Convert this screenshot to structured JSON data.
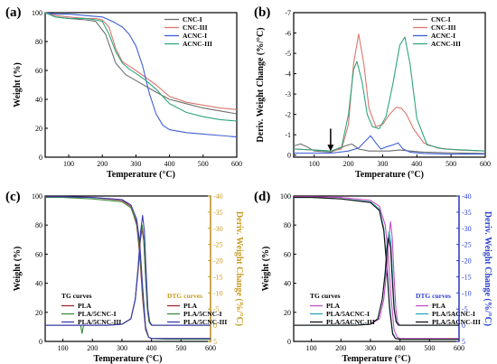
{
  "chart_data": [
    {
      "type": "line",
      "panel_label": "(a)",
      "xlabel": "Temperature (°C)",
      "ylabel": "Weight (%)",
      "xlim": [
        30,
        600
      ],
      "ylim": [
        0,
        100
      ],
      "xticks": [
        100,
        200,
        300,
        400,
        500,
        600
      ],
      "yticks": [
        0,
        20,
        40,
        60,
        80,
        100
      ],
      "legend_position": "top-right",
      "series": [
        {
          "name": "CNC-I",
          "color": "#6e6e6e",
          "x": [
            30,
            60,
            100,
            150,
            180,
            210,
            240,
            270,
            300,
            330,
            360,
            400,
            450,
            500,
            550,
            600
          ],
          "y": [
            100,
            97,
            96,
            95,
            94,
            85,
            65,
            57,
            53,
            49,
            45,
            40,
            37,
            34,
            32,
            30
          ]
        },
        {
          "name": "CNC-III",
          "color": "#d9776f",
          "x": [
            30,
            60,
            100,
            150,
            180,
            200,
            220,
            240,
            260,
            280,
            300,
            330,
            360,
            400,
            450,
            500,
            550,
            600
          ],
          "y": [
            100,
            98,
            97,
            96,
            96,
            95,
            90,
            75,
            66,
            63,
            60,
            55,
            50,
            42,
            38,
            36,
            34,
            33
          ]
        },
        {
          "name": "ACNC-I",
          "color": "#3f5fd6",
          "x": [
            30,
            60,
            100,
            150,
            200,
            230,
            260,
            280,
            300,
            320,
            340,
            360,
            380,
            400,
            450,
            500,
            550,
            600
          ],
          "y": [
            100,
            99,
            99,
            98,
            97,
            94,
            90,
            85,
            77,
            63,
            44,
            30,
            22,
            19,
            17,
            16,
            15,
            14
          ]
        },
        {
          "name": "ACNC-III",
          "color": "#2fa57e",
          "x": [
            30,
            60,
            100,
            150,
            180,
            200,
            220,
            240,
            260,
            280,
            300,
            330,
            360,
            400,
            450,
            500,
            550,
            600
          ],
          "y": [
            100,
            97,
            96,
            96,
            95,
            94,
            85,
            73,
            65,
            61,
            58,
            53,
            47,
            37,
            31,
            28,
            26,
            25
          ]
        }
      ]
    },
    {
      "type": "line",
      "panel_label": "(b)",
      "xlabel": "Temperature (°C)",
      "ylabel": "Deriv. Weight Change (%/°C)",
      "xlim": [
        40,
        600
      ],
      "ylim": [
        0.1,
        -7
      ],
      "xticks": [
        100,
        200,
        300,
        400,
        500,
        600
      ],
      "yticks": [
        0,
        -1,
        -2,
        -3,
        -4,
        -5,
        -6,
        -7
      ],
      "legend_position": "top-right",
      "annotation": "arrow",
      "series": [
        {
          "name": "CNC-I",
          "color": "#6e6e6e",
          "x": [
            40,
            60,
            80,
            100,
            150,
            190,
            210,
            230,
            260,
            290,
            320,
            350,
            380,
            420,
            480,
            540,
            600
          ],
          "y": [
            -0.45,
            -0.55,
            -0.4,
            -0.2,
            -0.15,
            -0.45,
            -0.55,
            -0.3,
            -0.2,
            -0.2,
            -0.2,
            -0.25,
            -0.2,
            -0.15,
            -0.12,
            -0.1,
            -0.08
          ]
        },
        {
          "name": "CNC-III",
          "color": "#d9776f",
          "x": [
            40,
            100,
            150,
            180,
            200,
            215,
            230,
            245,
            260,
            280,
            300,
            320,
            340,
            355,
            370,
            390,
            420,
            460,
            520,
            600
          ],
          "y": [
            -0.3,
            -0.25,
            -0.2,
            -0.3,
            -1.5,
            -4.5,
            -5.95,
            -4.5,
            -2.3,
            -1.4,
            -1.5,
            -2.0,
            -2.35,
            -2.3,
            -2.0,
            -1.3,
            -0.6,
            -0.35,
            -0.25,
            -0.2
          ]
        },
        {
          "name": "ACNC-I",
          "color": "#3f5fd6",
          "x": [
            40,
            100,
            150,
            200,
            230,
            250,
            265,
            280,
            295,
            310,
            330,
            345,
            360,
            380,
            420,
            500,
            600
          ],
          "y": [
            -0.1,
            -0.1,
            -0.1,
            -0.2,
            -0.35,
            -0.7,
            -0.95,
            -0.6,
            -0.3,
            -0.4,
            -0.5,
            -0.6,
            -0.3,
            -0.15,
            -0.08,
            -0.05,
            -0.05
          ]
        },
        {
          "name": "ACNC-III",
          "color": "#2fa57e",
          "x": [
            40,
            100,
            150,
            180,
            200,
            215,
            225,
            240,
            255,
            270,
            290,
            310,
            330,
            350,
            365,
            380,
            400,
            430,
            480,
            540,
            600
          ],
          "y": [
            -0.3,
            -0.25,
            -0.2,
            -0.4,
            -2.0,
            -4.2,
            -4.6,
            -3.6,
            -2.0,
            -1.4,
            -1.3,
            -1.9,
            -3.5,
            -5.4,
            -5.8,
            -4.5,
            -1.8,
            -0.5,
            -0.3,
            -0.25,
            -0.2
          ]
        }
      ]
    },
    {
      "type": "line",
      "panel_label": "(c)",
      "xlabel": "Temperature (°C)",
      "ylabel": "Weight (%)",
      "ylabel_right": "Deriv. Weight Change (%/°C)",
      "right_axis_color": "#c99a1e",
      "xlim": [
        40,
        600
      ],
      "ylim": [
        0,
        100
      ],
      "ylim_right": [
        5,
        -40
      ],
      "xticks": [
        100,
        200,
        300,
        400,
        500,
        600
      ],
      "yticks": [
        0,
        20,
        40,
        60,
        80,
        100
      ],
      "yticks_right": [
        5,
        0,
        -5,
        -10,
        -15,
        -20,
        -25,
        -30,
        -35,
        -40
      ],
      "legends": [
        {
          "title": "TG curves",
          "title_color": "#000000",
          "position": "left",
          "series": [
            "PLA",
            "PLA/5CNC-I",
            "PLA/5CNC-III"
          ]
        },
        {
          "title": "DTG curves",
          "title_color": "#c99a1e",
          "position": "right",
          "series": [
            "PLA",
            "PLA/5CNC-I",
            "PLA/5CNC-III"
          ]
        }
      ],
      "series": [
        {
          "name": "PLA",
          "group": "TG",
          "axis": "left",
          "color": "#9c2b2b",
          "x": [
            40,
            100,
            200,
            300,
            330,
            350,
            360,
            370,
            380,
            390,
            400,
            450,
            500,
            600
          ],
          "y": [
            99.5,
            99.5,
            99,
            97,
            93,
            80,
            60,
            30,
            8,
            3,
            2,
            2,
            2,
            2
          ]
        },
        {
          "name": "PLA/5CNC-I",
          "group": "TG",
          "axis": "left",
          "color": "#3a8c3a",
          "x": [
            40,
            100,
            200,
            300,
            330,
            350,
            360,
            370,
            380,
            390,
            400,
            450,
            500,
            600
          ],
          "y": [
            99,
            99,
            98,
            96,
            92,
            82,
            64,
            34,
            9,
            3,
            2,
            1.5,
            1.5,
            1.5
          ]
        },
        {
          "name": "PLA/5CNC-III",
          "group": "TG",
          "axis": "left",
          "color": "#3b3bb5",
          "x": [
            40,
            100,
            200,
            300,
            330,
            350,
            360,
            370,
            380,
            390,
            400,
            450,
            500,
            600
          ],
          "y": [
            99.5,
            99.5,
            99,
            97.5,
            94,
            84,
            68,
            38,
            10,
            3,
            2,
            2,
            2,
            2
          ]
        },
        {
          "name": "PLA",
          "group": "DTG",
          "axis": "right",
          "color": "#9c2b2b",
          "x": [
            40,
            150,
            250,
            300,
            330,
            345,
            355,
            362,
            368,
            374,
            380,
            386,
            392,
            400,
            450,
            600
          ],
          "y": [
            0,
            0,
            0,
            -0.3,
            -2,
            -8,
            -17,
            -26,
            -30,
            -26,
            -15,
            -5,
            -1,
            0,
            0,
            0
          ]
        },
        {
          "name": "PLA/5CNC-I",
          "group": "DTG",
          "axis": "right",
          "color": "#3a8c3a",
          "x": [
            40,
            150,
            160,
            165,
            170,
            250,
            300,
            330,
            345,
            355,
            362,
            368,
            374,
            380,
            386,
            392,
            400,
            450,
            600
          ],
          "y": [
            0,
            0,
            0,
            2.5,
            0,
            0,
            -0.3,
            -2,
            -8,
            -18,
            -27,
            -31,
            -27,
            -15,
            -5,
            -1,
            0,
            0,
            0
          ]
        },
        {
          "name": "PLA/5CNC-III",
          "group": "DTG",
          "axis": "right",
          "color": "#3b3bb5",
          "x": [
            40,
            150,
            250,
            300,
            330,
            345,
            355,
            363,
            370,
            376,
            382,
            388,
            394,
            402,
            450,
            600
          ],
          "y": [
            0,
            0,
            0,
            -0.3,
            -2,
            -8,
            -18,
            -29,
            -34,
            -29,
            -16,
            -5,
            -1,
            0,
            0,
            0
          ]
        }
      ]
    },
    {
      "type": "line",
      "panel_label": "(d)",
      "xlabel": "Temperature (°C)",
      "ylabel": "Weight (%)",
      "ylabel_right": "Deriv. Weight Change (%/°C)",
      "right_axis_color": "#2b3fd1",
      "xlim": [
        40,
        600
      ],
      "ylim": [
        0,
        100
      ],
      "ylim_right": [
        5,
        -40
      ],
      "xticks": [
        100,
        200,
        300,
        400,
        500,
        600
      ],
      "yticks": [
        0,
        20,
        40,
        60,
        80,
        100
      ],
      "yticks_right": [
        5,
        0,
        -5,
        -10,
        -15,
        -20,
        -25,
        -30,
        -35,
        -40
      ],
      "legends": [
        {
          "title": "TG curves",
          "title_color": "#000000",
          "position": "left",
          "series": [
            "PLA",
            "PLA/5ACNC-I",
            "PLA/5ACNC-III"
          ]
        },
        {
          "title": "DTG curves",
          "title_color": "#2b3fd1",
          "position": "right",
          "series": [
            "PLA",
            "PLA/5ACNC-I",
            "PLA/5ACNC-III"
          ]
        }
      ],
      "series": [
        {
          "name": "PLA",
          "group": "TG",
          "axis": "left",
          "color": "#c050c0",
          "x": [
            40,
            100,
            200,
            300,
            330,
            350,
            360,
            370,
            380,
            390,
            400,
            450,
            500,
            600
          ],
          "y": [
            99.5,
            99.5,
            99,
            97,
            93,
            80,
            60,
            30,
            8,
            3,
            2,
            2,
            2,
            2
          ]
        },
        {
          "name": "PLA/5ACNC-I",
          "group": "TG",
          "axis": "left",
          "color": "#2aa7b8",
          "x": [
            40,
            100,
            200,
            300,
            330,
            345,
            355,
            365,
            375,
            385,
            400,
            450,
            600
          ],
          "y": [
            99,
            99,
            98,
            96,
            91,
            78,
            55,
            25,
            6,
            2,
            1.5,
            1.5,
            1.5
          ]
        },
        {
          "name": "PLA/5ACNC-III",
          "group": "TG",
          "axis": "left",
          "color": "#111111",
          "x": [
            40,
            100,
            200,
            300,
            330,
            345,
            355,
            365,
            375,
            385,
            400,
            450,
            600
          ],
          "y": [
            99,
            99,
            98,
            95.5,
            90,
            76,
            52,
            22,
            5,
            2,
            1.5,
            1.5,
            1.5
          ]
        },
        {
          "name": "PLA",
          "group": "DTG",
          "axis": "right",
          "color": "#c050c0",
          "x": [
            40,
            150,
            250,
            300,
            330,
            345,
            355,
            362,
            368,
            374,
            380,
            386,
            392,
            400,
            450,
            600
          ],
          "y": [
            0,
            0,
            0,
            -0.3,
            -2,
            -8,
            -17,
            -27,
            -32,
            -27,
            -15,
            -5,
            -1,
            0,
            0,
            0
          ]
        },
        {
          "name": "PLA/5ACNC-I",
          "group": "DTG",
          "axis": "right",
          "color": "#2aa7b8",
          "x": [
            40,
            150,
            250,
            300,
            325,
            340,
            350,
            357,
            363,
            369,
            375,
            381,
            388,
            396,
            450,
            600
          ],
          "y": [
            0,
            0,
            0,
            -0.3,
            -2,
            -8,
            -17,
            -26,
            -29,
            -26,
            -15,
            -5,
            -1,
            0,
            0,
            0
          ]
        },
        {
          "name": "PLA/5ACNC-III",
          "group": "DTG",
          "axis": "right",
          "color": "#111111",
          "x": [
            40,
            150,
            250,
            300,
            325,
            340,
            350,
            356,
            362,
            368,
            374,
            380,
            387,
            395,
            450,
            600
          ],
          "y": [
            0,
            0,
            0,
            -0.3,
            -2,
            -8,
            -16,
            -24,
            -27,
            -24,
            -14,
            -5,
            -1,
            0,
            0,
            0
          ]
        }
      ]
    }
  ]
}
